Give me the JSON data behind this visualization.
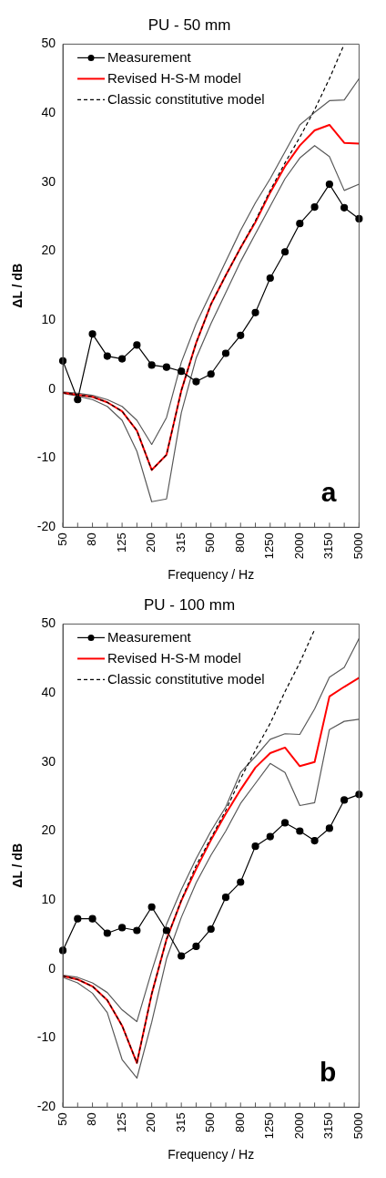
{
  "chart_data": [
    {
      "type": "line",
      "title": "PU - 50 mm",
      "xlabel": "Frequency / Hz",
      "ylabel": "ΔL / dB",
      "categories": [
        "50",
        null,
        "80",
        null,
        "125",
        null,
        "200",
        null,
        "315",
        null,
        "500",
        null,
        "800",
        null,
        "1250",
        null,
        "2000",
        null,
        "3150",
        null,
        "5000"
      ],
      "ylim": [
        -20,
        50
      ],
      "yticks": [
        -20,
        -10,
        0,
        10,
        20,
        30,
        40,
        50
      ],
      "grid": false,
      "legend": "top left",
      "annotations": [
        "a"
      ],
      "series": [
        {
          "color": "#595959",
          "marker": "none",
          "line_style": "solid",
          "values": [
            -0.6,
            -1.0,
            -1.5,
            -2.5,
            -4.5,
            -9.0,
            -16.3,
            -15.9,
            -3.4,
            4.5,
            9.5,
            14.0,
            18.5,
            22.5,
            26.5,
            30.5,
            33.5,
            35.3,
            33.7,
            28.8,
            29.7
          ]
        },
        {
          "color": "#595959",
          "marker": "none",
          "line_style": "solid",
          "values": [
            -0.4,
            -0.6,
            -0.9,
            -1.5,
            -2.5,
            -4.5,
            -8.0,
            -4.1,
            3.9,
            9.5,
            14.0,
            18.5,
            23.0,
            27.0,
            30.5,
            34.4,
            38.3,
            40.1,
            41.8,
            41.9,
            45.0
          ]
        },
        {
          "name": "Measurement",
          "color": "#000000",
          "marker": "circle",
          "line_style": "solid",
          "values": [
            4.1,
            -1.5,
            8.0,
            4.8,
            4.4,
            6.4,
            3.5,
            3.2,
            2.6,
            1.1,
            2.2,
            5.2,
            7.8,
            11.1,
            16.1,
            19.9,
            24.0,
            26.4,
            29.7,
            26.3,
            24.7
          ]
        },
        {
          "name": "Revised H-S-M model",
          "color": "#ff0000",
          "marker": "none",
          "line_style": "solid",
          "values": [
            -0.5,
            -0.8,
            -1.1,
            -1.9,
            -3.2,
            -6.0,
            -11.7,
            -9.5,
            -0.2,
            6.7,
            12.3,
            16.5,
            20.5,
            24.2,
            28.5,
            32.3,
            35.3,
            37.5,
            38.3,
            35.7,
            35.6
          ]
        },
        {
          "name": "Classic constitutive model",
          "color": "#000000",
          "marker": "none",
          "line_style": "dashed",
          "values": [
            -0.5,
            -0.8,
            -1.1,
            -1.9,
            -3.2,
            -6.0,
            -11.7,
            -9.5,
            -0.2,
            6.7,
            12.3,
            16.5,
            20.5,
            24.4,
            28.8,
            32.8,
            36.5,
            40.5,
            45.0,
            50.0,
            null
          ]
        }
      ]
    },
    {
      "type": "line",
      "title": "PU - 100 mm",
      "xlabel": "Frequency / Hz",
      "ylabel": "ΔL / dB",
      "categories": [
        "50",
        null,
        "80",
        null,
        "125",
        null,
        "200",
        null,
        "315",
        null,
        "500",
        null,
        "800",
        null,
        "1250",
        null,
        "2000",
        null,
        "3150",
        null,
        "5000"
      ],
      "ylim": [
        -20,
        50
      ],
      "yticks": [
        -20,
        -10,
        0,
        10,
        20,
        30,
        40,
        50
      ],
      "grid": false,
      "legend": "top left",
      "annotations": [
        "b"
      ],
      "series": [
        {
          "color": "#595959",
          "marker": "none",
          "line_style": "solid",
          "values": [
            -1.2,
            -2.0,
            -3.5,
            -6.3,
            -13.1,
            -15.8,
            -7.7,
            1.5,
            7.5,
            12.5,
            16.5,
            20.0,
            24.0,
            26.9,
            29.8,
            28.5,
            23.7,
            24.1,
            34.7,
            35.9,
            36.2
          ]
        },
        {
          "color": "#595959",
          "marker": "none",
          "line_style": "solid",
          "values": [
            -0.9,
            -1.2,
            -2.0,
            -3.4,
            -5.9,
            -7.6,
            -0.3,
            6.5,
            11.5,
            16.0,
            20.0,
            23.5,
            28.5,
            30.8,
            33.3,
            34.1,
            34.0,
            37.7,
            42.3,
            43.7,
            47.9
          ]
        },
        {
          "name": "Measurement",
          "color": "#000000",
          "marker": "circle",
          "line_style": "solid",
          "values": [
            2.7,
            7.3,
            7.3,
            5.2,
            6.0,
            5.6,
            9.0,
            5.6,
            1.9,
            3.3,
            5.8,
            10.4,
            12.6,
            17.8,
            19.2,
            21.2,
            20.0,
            18.6,
            20.4,
            24.5,
            25.3
          ]
        },
        {
          "name": "Revised H-S-M model",
          "color": "#ff0000",
          "marker": "none",
          "line_style": "solid",
          "values": [
            -1.0,
            -1.5,
            -2.5,
            -4.5,
            -8.2,
            -13.6,
            -3.6,
            4.3,
            9.9,
            14.5,
            18.7,
            22.5,
            26.0,
            29.2,
            31.3,
            32.1,
            29.4,
            30.0,
            39.5,
            40.9,
            42.2
          ]
        },
        {
          "name": "Classic constitutive model",
          "color": "#000000",
          "marker": "none",
          "line_style": "dashed",
          "values": [
            -1.0,
            -1.5,
            -2.5,
            -4.5,
            -8.2,
            -13.6,
            -3.6,
            4.3,
            10.0,
            15.0,
            19.0,
            23.0,
            27.6,
            31.7,
            35.6,
            40.2,
            44.4,
            49.2,
            null,
            null,
            null
          ]
        }
      ]
    }
  ]
}
